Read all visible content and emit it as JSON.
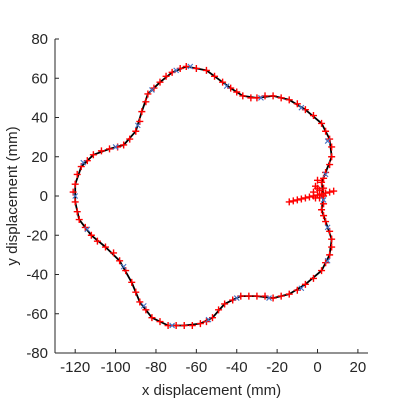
{
  "chart_data": {
    "type": "line",
    "title": "",
    "xlabel": "x displacement (mm)",
    "ylabel": "y displacement (mm)",
    "xlim": [
      -130,
      25
    ],
    "ylim": [
      -80,
      80
    ],
    "xticks": [
      -120,
      -100,
      -80,
      -60,
      -40,
      -20,
      0,
      20
    ],
    "xtick_labels": [
      "-120",
      "-100",
      "-80",
      "-60",
      "-40",
      "-20",
      "0",
      "20"
    ],
    "yticks": [
      -80,
      -60,
      -40,
      -20,
      0,
      20,
      40,
      60,
      80
    ],
    "ytick_labels": [
      "-80",
      "-60",
      "-40",
      "-20",
      "0",
      "20",
      "40",
      "60",
      "80"
    ],
    "grid": false,
    "legend": "none",
    "series": [
      {
        "style": "line",
        "color": "#000000",
        "points": [
          [
            -65,
            66
          ],
          [
            -55,
            64
          ],
          [
            -47,
            58
          ],
          [
            -43,
            55
          ],
          [
            -37,
            51
          ],
          [
            -30,
            50
          ],
          [
            -22,
            51
          ],
          [
            -14,
            49
          ],
          [
            -6,
            44
          ],
          [
            2,
            37
          ],
          [
            6,
            29
          ],
          [
            7,
            20
          ],
          [
            4,
            12
          ],
          [
            2,
            7
          ],
          [
            3,
            0
          ],
          [
            2,
            -7
          ],
          [
            4,
            -13
          ],
          [
            7,
            -22
          ],
          [
            6,
            -30
          ],
          [
            2,
            -38
          ],
          [
            -6,
            -45
          ],
          [
            -14,
            -50
          ],
          [
            -22,
            -52
          ],
          [
            -30,
            -51
          ],
          [
            -38,
            -51
          ],
          [
            -46,
            -55
          ],
          [
            -52,
            -62
          ],
          [
            -58,
            -65
          ],
          [
            -66,
            -66
          ],
          [
            -74,
            -66
          ],
          [
            -82,
            -62
          ],
          [
            -88,
            -54
          ],
          [
            -92,
            -44
          ],
          [
            -98,
            -33
          ],
          [
            -105,
            -26
          ],
          [
            -112,
            -20
          ],
          [
            -118,
            -12
          ],
          [
            -120,
            -3
          ],
          [
            -120,
            6
          ],
          [
            -117,
            15
          ],
          [
            -111,
            21
          ],
          [
            -103,
            24
          ],
          [
            -96,
            26
          ],
          [
            -90,
            33
          ],
          [
            -87,
            43
          ],
          [
            -84,
            52
          ],
          [
            -78,
            58
          ],
          [
            -72,
            63
          ],
          [
            -65,
            66
          ]
        ]
      },
      {
        "style": "markers",
        "marker": "+",
        "color": "#ff0000",
        "points": [
          [
            -65,
            66
          ],
          [
            -60,
            65
          ],
          [
            -55,
            64
          ],
          [
            -51,
            61
          ],
          [
            -47,
            58
          ],
          [
            -43,
            55
          ],
          [
            -40,
            53
          ],
          [
            -37,
            51
          ],
          [
            -33,
            50
          ],
          [
            -30,
            50
          ],
          [
            -26,
            51
          ],
          [
            -22,
            51
          ],
          [
            -18,
            50
          ],
          [
            -14,
            49
          ],
          [
            -10,
            47
          ],
          [
            -6,
            44
          ],
          [
            -2,
            41
          ],
          [
            2,
            37
          ],
          [
            4,
            33
          ],
          [
            6,
            29
          ],
          [
            7,
            25
          ],
          [
            7,
            20
          ],
          [
            6,
            16
          ],
          [
            4,
            12
          ],
          [
            3,
            9
          ],
          [
            2,
            7
          ],
          [
            3,
            4
          ],
          [
            3,
            0
          ],
          [
            3,
            -4
          ],
          [
            2,
            -7
          ],
          [
            3,
            -10
          ],
          [
            4,
            -13
          ],
          [
            6,
            -18
          ],
          [
            7,
            -22
          ],
          [
            7,
            -26
          ],
          [
            6,
            -30
          ],
          [
            4,
            -34
          ],
          [
            2,
            -38
          ],
          [
            -2,
            -42
          ],
          [
            -6,
            -45
          ],
          [
            -10,
            -48
          ],
          [
            -14,
            -50
          ],
          [
            -18,
            -51
          ],
          [
            -22,
            -52
          ],
          [
            -26,
            -51
          ],
          [
            -30,
            -51
          ],
          [
            -34,
            -51
          ],
          [
            -38,
            -51
          ],
          [
            -42,
            -53
          ],
          [
            -46,
            -55
          ],
          [
            -49,
            -58
          ],
          [
            -52,
            -62
          ],
          [
            -55,
            -64
          ],
          [
            -58,
            -65
          ],
          [
            -62,
            -66
          ],
          [
            -66,
            -66
          ],
          [
            -70,
            -66
          ],
          [
            -74,
            -66
          ],
          [
            -78,
            -64
          ],
          [
            -82,
            -62
          ],
          [
            -85,
            -58
          ],
          [
            -88,
            -54
          ],
          [
            -90,
            -49
          ],
          [
            -92,
            -44
          ],
          [
            -95,
            -38
          ],
          [
            -98,
            -33
          ],
          [
            -101,
            -29
          ],
          [
            -105,
            -26
          ],
          [
            -109,
            -23
          ],
          [
            -112,
            -20
          ],
          [
            -115,
            -16
          ],
          [
            -118,
            -12
          ],
          [
            -119,
            -8
          ],
          [
            -120,
            -3
          ],
          [
            -121,
            2
          ],
          [
            -120,
            6
          ],
          [
            -119,
            11
          ],
          [
            -117,
            15
          ],
          [
            -114,
            18
          ],
          [
            -111,
            21
          ],
          [
            -107,
            23
          ],
          [
            -103,
            24
          ],
          [
            -99,
            25
          ],
          [
            -96,
            26
          ],
          [
            -93,
            29
          ],
          [
            -90,
            33
          ],
          [
            -88,
            38
          ],
          [
            -87,
            43
          ],
          [
            -85,
            48
          ],
          [
            -84,
            52
          ],
          [
            -81,
            55
          ],
          [
            -78,
            58
          ],
          [
            -75,
            61
          ],
          [
            -72,
            63
          ],
          [
            -68,
            65
          ],
          [
            -14,
            -3
          ],
          [
            -12,
            -2.5
          ],
          [
            -10,
            -2
          ],
          [
            -8,
            -1.5
          ],
          [
            -6,
            -1
          ],
          [
            -4,
            -0.5
          ],
          [
            -2,
            0
          ],
          [
            0,
            0.5
          ],
          [
            2,
            1
          ],
          [
            4,
            1.5
          ],
          [
            6,
            2
          ],
          [
            8,
            2.5
          ],
          [
            -1,
            -1
          ],
          [
            1,
            -1
          ],
          [
            0,
            4
          ],
          [
            -1,
            5
          ],
          [
            0,
            8
          ],
          [
            1,
            3
          ],
          [
            -2,
            2
          ]
        ]
      },
      {
        "style": "markers",
        "marker": "x",
        "color": "#4472c4",
        "points": [
          [
            -63,
            66
          ],
          [
            -45,
            56
          ],
          [
            -28,
            50
          ],
          [
            -8,
            45
          ],
          [
            5,
            28
          ],
          [
            4,
            11
          ],
          [
            3,
            -2
          ],
          [
            5,
            -16
          ],
          [
            5,
            -33
          ],
          [
            -8,
            -47
          ],
          [
            -24,
            -52
          ],
          [
            -40,
            -52
          ],
          [
            -54,
            -63
          ],
          [
            -72,
            -66
          ],
          [
            -86,
            -56
          ],
          [
            -96,
            -36
          ],
          [
            -114,
            -17
          ],
          [
            -120,
            0
          ],
          [
            -116,
            17
          ],
          [
            -100,
            25
          ],
          [
            -89,
            36
          ],
          [
            -82,
            54
          ],
          [
            -70,
            64
          ]
        ]
      }
    ]
  }
}
